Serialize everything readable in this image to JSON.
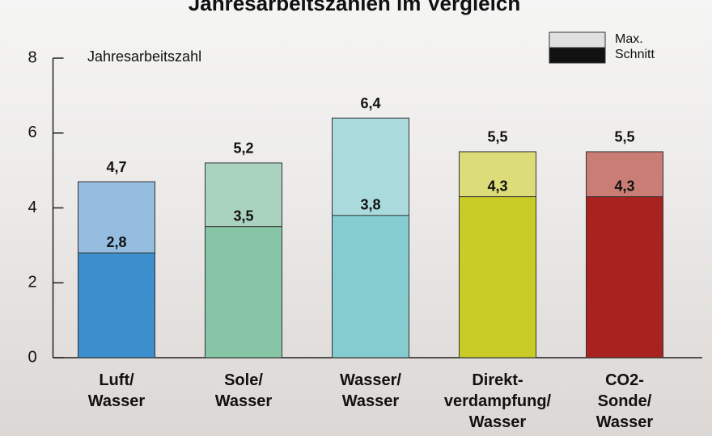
{
  "chart_data": {
    "type": "bar",
    "title": "Jahresarbeitszahlen im Vergleich",
    "y_label": "Jahresarbeitszahl",
    "categories": [
      "Luft/\nWasser",
      "Sole/\nWasser",
      "Wasser/\nWasser",
      "Direkt-\nverdampfung/\nWasser",
      "CO2-\nSonde/\nWasser"
    ],
    "series": [
      {
        "name": "Max.",
        "color": "#e0e0e0",
        "colors": [
          "#94bde0",
          "#a9d2bf",
          "#abdadd",
          "#dcdc78",
          "#c97d74"
        ],
        "values": [
          4.7,
          5.2,
          6.4,
          5.5,
          5.5
        ],
        "value_labels": [
          "4,7",
          "5,2",
          "6,4",
          "5,5",
          "5,5"
        ]
      },
      {
        "name": "Schnitt",
        "color": "#111111",
        "colors": [
          "#3a8fcc",
          "#86c5a6",
          "#84ccd0",
          "#c9cb27",
          "#a8231f"
        ],
        "values": [
          2.8,
          3.5,
          3.8,
          4.3,
          4.3
        ],
        "value_labels": [
          "2,8",
          "3,5",
          "3,8",
          "4,3",
          "4,3"
        ]
      }
    ],
    "ylim": [
      0,
      8
    ],
    "yticks": [
      0,
      2,
      4,
      6,
      8
    ],
    "legend": "top-right"
  }
}
